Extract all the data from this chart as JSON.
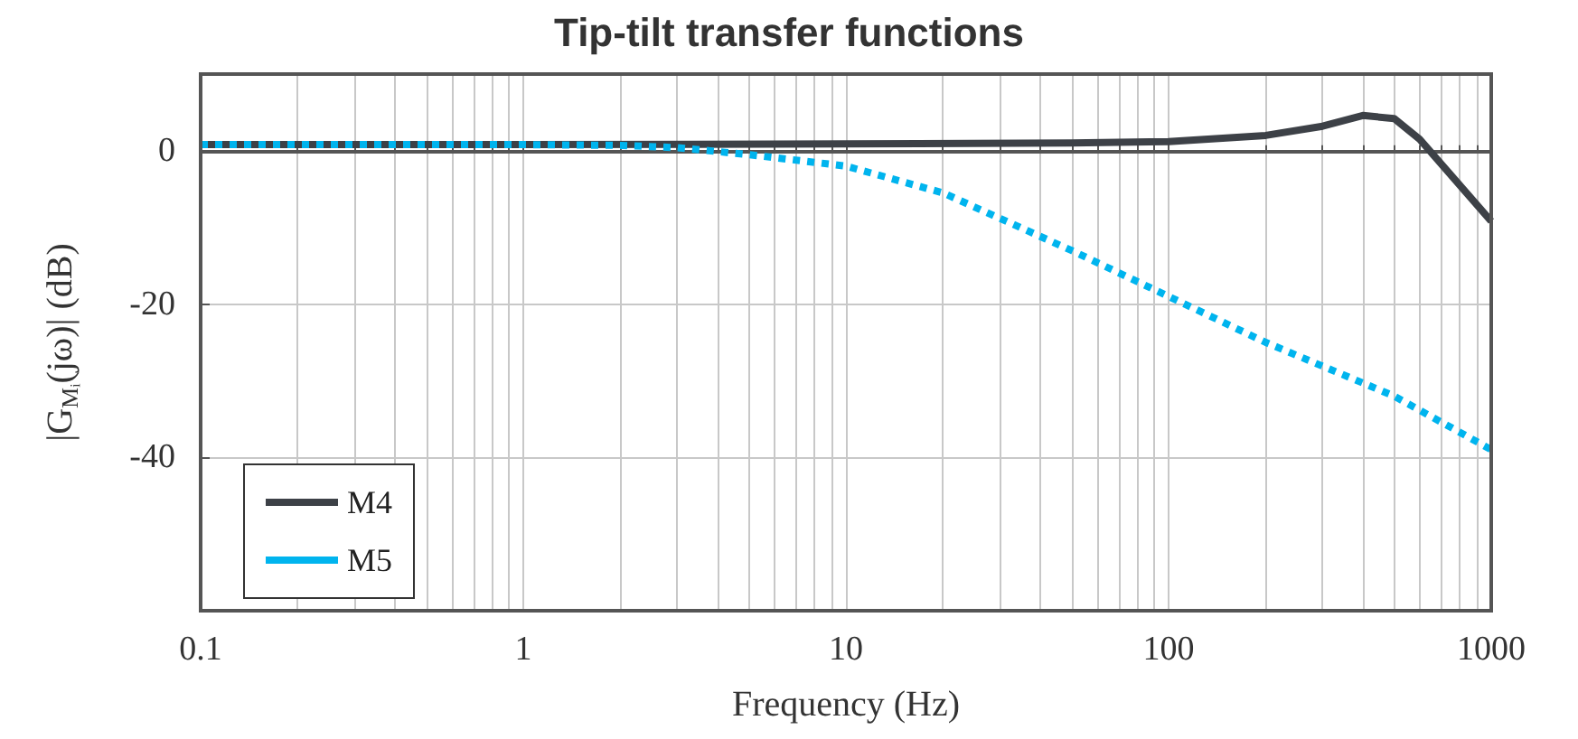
{
  "chart_data": {
    "type": "line",
    "title": "Tip-tilt transfer functions",
    "xlabel": "Frequency (Hz)",
    "ylabel": "|G$_{Mᵢ}$(jω)| (dB)",
    "log": "x",
    "xlim": [
      0.1,
      1000
    ],
    "xticks": [
      0.1,
      1,
      10,
      100,
      1000
    ],
    "ylim": [
      -60,
      10
    ],
    "yticks": [
      -40,
      -20,
      0
    ],
    "grid": true,
    "legend": "bottom left",
    "marker": "none",
    "series": [
      {
        "name": "M4",
        "color": "#3d4147",
        "line_style": "solid",
        "x": [
          0.1,
          1,
          10,
          50,
          100,
          200,
          300,
          400,
          500,
          600,
          1000
        ],
        "values": [
          0.8,
          0.8,
          0.9,
          1.0,
          1.2,
          2,
          3.2,
          4.6,
          4.2,
          1.5,
          -9.2
        ]
      },
      {
        "name": "M5",
        "color": "#00b4ee",
        "line_style": "dashed",
        "x": [
          0.1,
          1,
          2,
          3,
          5,
          10,
          20,
          50,
          100,
          200,
          500,
          1000
        ],
        "values": [
          0.8,
          0.8,
          0.7,
          0.4,
          -0.5,
          -2,
          -5.5,
          -13,
          -19,
          -25,
          -32,
          -39
        ]
      }
    ]
  }
}
